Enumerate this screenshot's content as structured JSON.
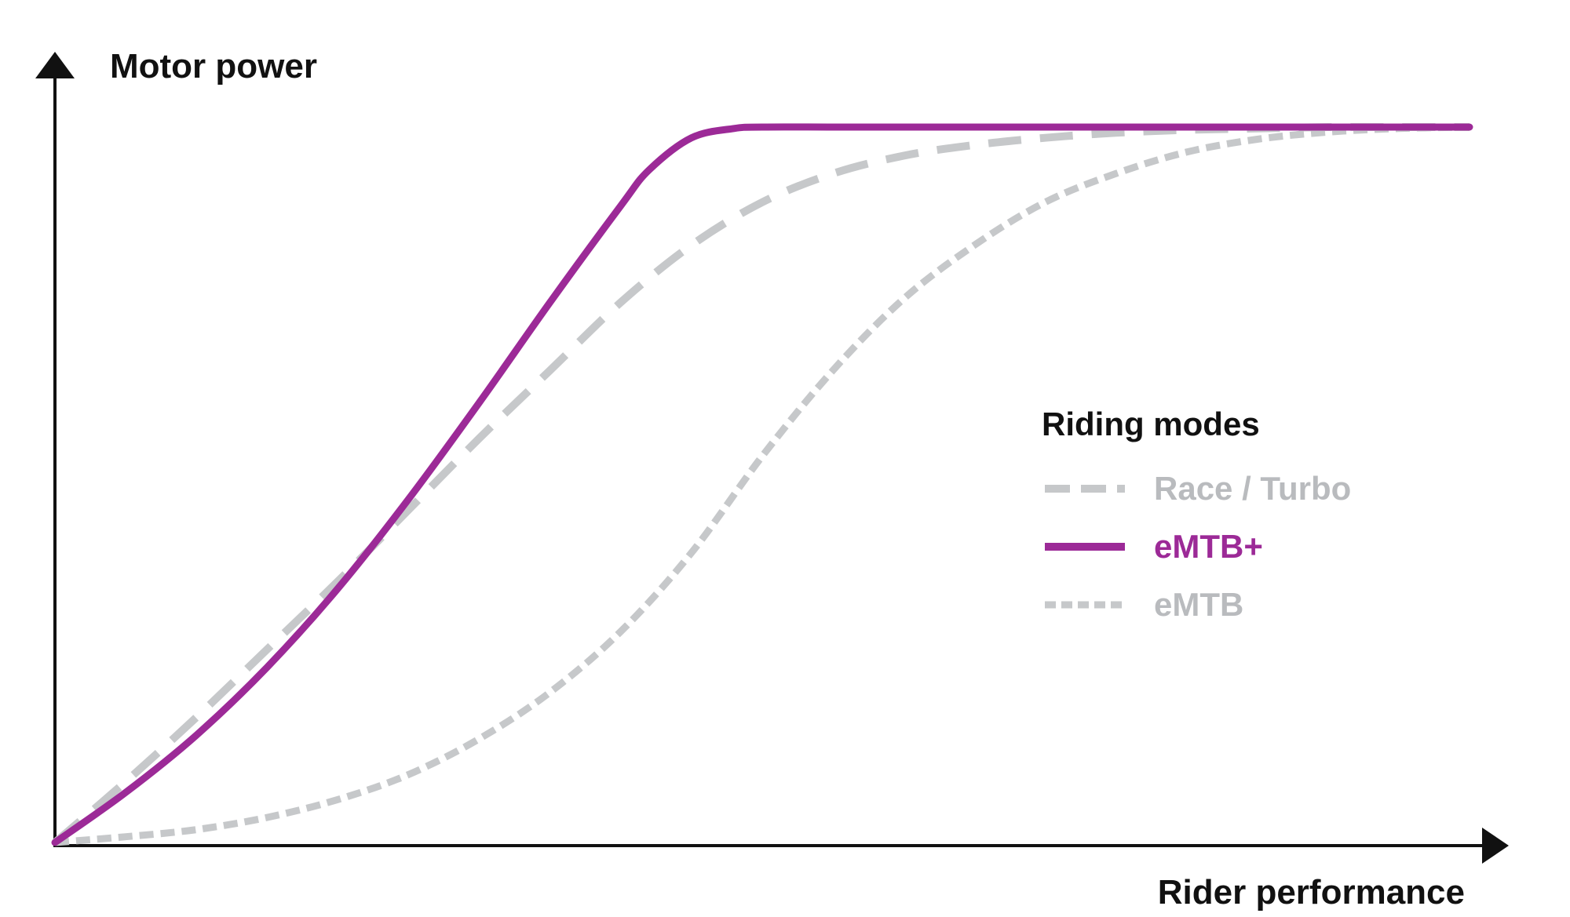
{
  "chart_data": {
    "type": "line",
    "xlabel": "Rider performance",
    "ylabel": "Motor power",
    "xlim": [
      0,
      100
    ],
    "ylim": [
      0,
      100
    ],
    "grid": false,
    "legend": {
      "title": "Riding modes",
      "placement": "right-center"
    },
    "series": [
      {
        "name": "Race / Turbo",
        "color": "#c6c8ca",
        "style": "dashed",
        "x": [
          0,
          5,
          10,
          15,
          20,
          25,
          30,
          35,
          40,
          45,
          50,
          55,
          60,
          65,
          70,
          75,
          80,
          85,
          90,
          95,
          100
        ],
        "y": [
          0,
          8.5,
          17.5,
          27,
          36.5,
          46.5,
          56.5,
          66,
          75.5,
          83.5,
          89.5,
          93.5,
          96,
          97.5,
          98.5,
          99.2,
          99.6,
          99.8,
          100,
          100,
          100
        ]
      },
      {
        "name": "eMTB+",
        "color": "#9c2a97",
        "style": "solid",
        "x": [
          0,
          5,
          10,
          15,
          20,
          25,
          30,
          35,
          40,
          42,
          45,
          48,
          50,
          55,
          60,
          70,
          80,
          90,
          100
        ],
        "y": [
          0,
          7,
          15,
          24.5,
          35.5,
          48,
          61.5,
          75.5,
          89,
          94,
          98.5,
          99.8,
          100,
          100,
          100,
          100,
          100,
          100,
          100
        ]
      },
      {
        "name": "eMTB",
        "color": "#c6c8ca",
        "style": "dotted",
        "x": [
          0,
          5,
          10,
          15,
          20,
          25,
          30,
          35,
          40,
          45,
          50,
          55,
          60,
          65,
          70,
          75,
          80,
          85,
          90,
          95,
          100
        ],
        "y": [
          0,
          0.8,
          1.8,
          3.5,
          6,
          9.5,
          14.5,
          21,
          29.5,
          40.5,
          54,
          66,
          76,
          83.5,
          89.5,
          93.5,
          96.5,
          98.3,
          99.3,
          99.8,
          100
        ]
      }
    ]
  }
}
